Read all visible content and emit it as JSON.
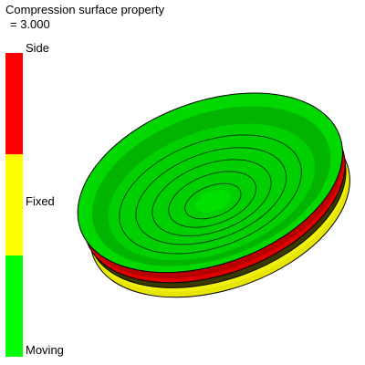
{
  "header": {
    "title": "Compression surface property",
    "value_line": " = 3.000"
  },
  "legend": {
    "bands": [
      {
        "label": "Side",
        "color": "#ff0000"
      },
      {
        "label": "Fixed",
        "color": "#ffff00"
      },
      {
        "label": "Moving",
        "color": "#00ff00"
      }
    ]
  },
  "colors": {
    "moving": "#00e600",
    "side": "#e00000",
    "fixed": "#e8e800",
    "edge": "#000000"
  },
  "viewport": {
    "model_icon": "mold-disc-part"
  }
}
